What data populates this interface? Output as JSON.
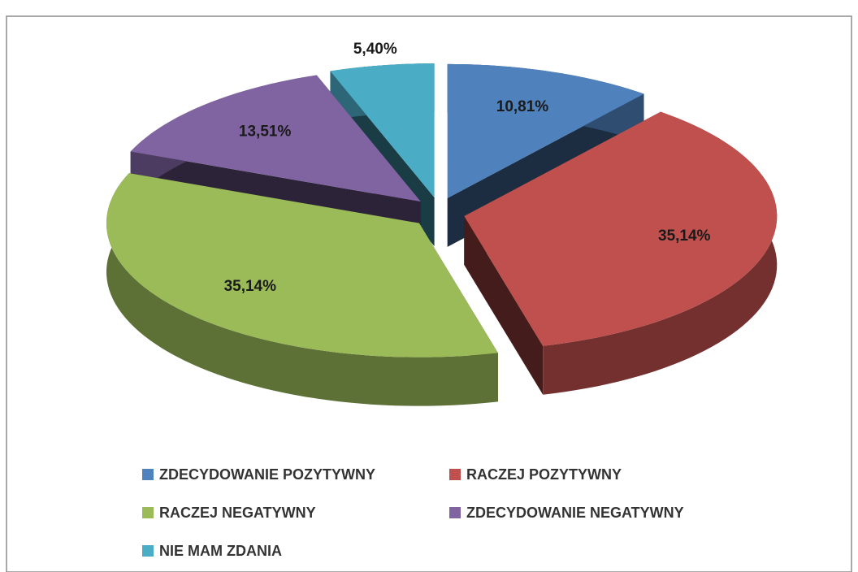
{
  "chart_data": {
    "type": "pie3d",
    "categories": [
      "ZDECYDOWANIE POZYTYWNY",
      "RACZEJ POZYTYWNY",
      "RACZEJ NEGATYWNY",
      "ZDECYDOWANIE NEGATYWNY",
      "NIE MAM ZDANIA"
    ],
    "values": [
      10.81,
      35.14,
      35.14,
      13.51,
      5.4
    ],
    "value_labels": [
      "10,81%",
      "35,14%",
      "35,14%",
      "13,51%",
      "5,40%"
    ],
    "colors": [
      "#4f81bd",
      "#c0504d",
      "#9bbb59",
      "#8064a2",
      "#4bacc6"
    ],
    "legend": "bottom"
  }
}
